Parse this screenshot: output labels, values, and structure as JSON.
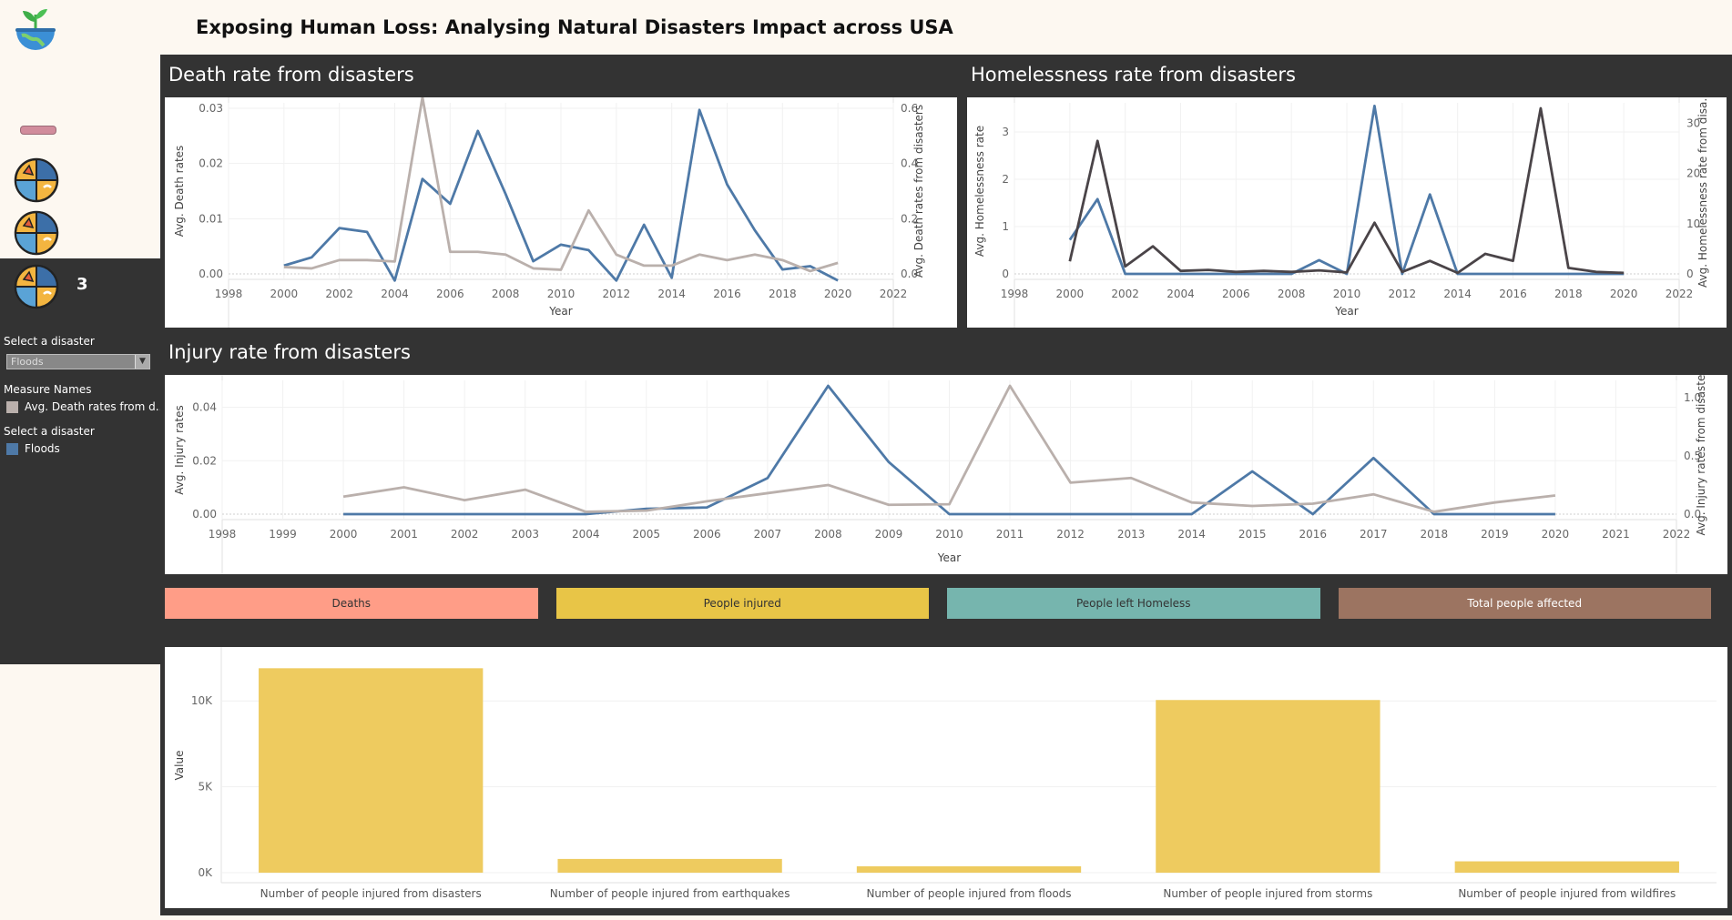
{
  "header": {
    "title": "Exposing Human Loss: Analysing Natural Disasters Impact across USA"
  },
  "icons": {
    "logo": "plant-globe-icon",
    "nav": [
      "disaster-icon",
      "disaster-icon",
      "disaster-icon"
    ]
  },
  "sidebar": {
    "nav_count": "3",
    "filter1_label": "Select a disaster",
    "filter1_value": "Floods",
    "legend1_title": "Measure Names",
    "legend1_item": "Avg. Death rates from d..",
    "legend1_color": "#bab0ac",
    "legend2_title": "Select a disaster",
    "legend2_item": "Floods",
    "legend2_color": "#4e79a7"
  },
  "panels": {
    "death": {
      "title": "Death rate from disasters"
    },
    "homeless": {
      "title": "Homelessness rate from disasters"
    },
    "injury": {
      "title": "Injury rate from disasters"
    }
  },
  "kpi_buttons": [
    {
      "label": "Deaths",
      "color": "#ff9d87",
      "text_color": "#333333"
    },
    {
      "label": "People injured",
      "color": "#e8c547",
      "text_color": "#333333"
    },
    {
      "label": "People left Homeless",
      "color": "#76b5ae",
      "text_color": "#333333"
    },
    {
      "label": "Total people affected",
      "color": "#9c7461",
      "text_color": "#ffffff"
    }
  ],
  "colors": {
    "flood": "#4e79a7",
    "all": "#bab0ac",
    "all_dark": "#4a4448",
    "bar": "#eecb5f",
    "dash": "#333333"
  },
  "chart_data": [
    {
      "type": "line",
      "title": "Death rate from disasters",
      "xlabel": "Year",
      "ylabel": "Avg. Death rates",
      "y2label": "Avg. Death rates from disasters",
      "xlim": [
        1998,
        2022
      ],
      "xticks": [
        "1998",
        "2000",
        "2002",
        "2004",
        "2006",
        "2008",
        "2010",
        "2012",
        "2014",
        "2016",
        "2018",
        "2020",
        "2022"
      ],
      "ylim": [
        0,
        0.03
      ],
      "yticks": [
        "0.00",
        "0.01",
        "0.02",
        "0.03"
      ],
      "y2lim": [
        0,
        0.6
      ],
      "y2ticks": [
        "0.0",
        "0.2",
        "0.4",
        "0.6"
      ],
      "x": [
        2000,
        2001,
        2002,
        2003,
        2004,
        2005,
        2006,
        2007,
        2008,
        2009,
        2010,
        2011,
        2012,
        2013,
        2014,
        2015,
        2016,
        2017,
        2018,
        2019,
        2020
      ],
      "series": [
        {
          "name": "Floods",
          "axis": "left",
          "values": [
            0.0015,
            0.003,
            0.0083,
            0.0076,
            -0.0012,
            0.0172,
            0.0127,
            0.0259,
            0.0145,
            0.0023,
            0.0053,
            0.0043,
            -0.0012,
            0.0089,
            -0.0007,
            0.0297,
            0.0162,
            0.0079,
            0.0008,
            0.0014,
            -0.0012
          ]
        },
        {
          "name": "Avg. Death rates from disasters",
          "axis": "right",
          "values": [
            0.025,
            0.02,
            0.05,
            0.05,
            0.045,
            0.64,
            0.08,
            0.08,
            0.07,
            0.02,
            0.015,
            0.23,
            0.07,
            0.03,
            0.03,
            0.07,
            0.05,
            0.07,
            0.05,
            0.01,
            0.04
          ]
        }
      ]
    },
    {
      "type": "line",
      "title": "Homelessness rate from disasters",
      "xlabel": "Year",
      "ylabel": "Avg. Homelessness rate",
      "y2label": "Avg. Homelessness rate from disa..",
      "xlim": [
        1998,
        2022
      ],
      "xticks": [
        "1998",
        "2000",
        "2002",
        "2004",
        "2006",
        "2008",
        "2010",
        "2012",
        "2014",
        "2016",
        "2018",
        "2020",
        "2022"
      ],
      "ylim": [
        0,
        3.5
      ],
      "yticks": [
        "0",
        "1",
        "2",
        "3"
      ],
      "y2lim": [
        0,
        33
      ],
      "y2ticks": [
        "0",
        "10",
        "20",
        "30"
      ],
      "x": [
        2000,
        2001,
        2002,
        2003,
        2004,
        2005,
        2006,
        2007,
        2008,
        2009,
        2010,
        2011,
        2012,
        2013,
        2014,
        2015,
        2016,
        2017,
        2018,
        2019,
        2020
      ],
      "series": [
        {
          "name": "Floods",
          "axis": "left",
          "values": [
            0.72,
            1.58,
            0,
            0,
            0,
            0,
            0,
            0,
            0,
            0.29,
            0,
            3.55,
            0,
            1.68,
            0,
            0,
            0,
            0,
            0,
            0,
            0
          ]
        },
        {
          "name": "Avg. Homelessness rate from disasters",
          "axis": "right",
          "values": [
            2.5,
            26.5,
            1.5,
            5.5,
            0.6,
            0.8,
            0.4,
            0.6,
            0.4,
            0.7,
            0.3,
            10.2,
            0.4,
            2.6,
            0.2,
            4,
            2.6,
            33,
            1.2,
            0.4,
            0.2
          ]
        }
      ]
    },
    {
      "type": "line",
      "title": "Injury rate from disasters",
      "xlabel": "Year",
      "ylabel": "Avg. Injury rates",
      "y2label": "Avg. Injury rates from disasters",
      "xlim": [
        1998,
        2022
      ],
      "xticks": [
        "1998",
        "1999",
        "2000",
        "2001",
        "2002",
        "2003",
        "2004",
        "2005",
        "2006",
        "2007",
        "2008",
        "2009",
        "2010",
        "2011",
        "2012",
        "2013",
        "2014",
        "2015",
        "2016",
        "2017",
        "2018",
        "2019",
        "2020",
        "2021",
        "2022"
      ],
      "ylim": [
        0,
        0.048
      ],
      "yticks": [
        "0.00",
        "0.02",
        "0.04"
      ],
      "y2lim": [
        0,
        1.1
      ],
      "y2ticks": [
        "0.0",
        "0.5",
        "1.0"
      ],
      "x": [
        2000,
        2001,
        2002,
        2003,
        2004,
        2005,
        2006,
        2007,
        2008,
        2009,
        2010,
        2011,
        2012,
        2013,
        2014,
        2015,
        2016,
        2017,
        2018,
        2019,
        2020
      ],
      "series": [
        {
          "name": "Floods",
          "axis": "left",
          "values": [
            0,
            0,
            0,
            0,
            0,
            0.002,
            0.0025,
            0.0135,
            0.048,
            0.0195,
            0,
            0,
            0,
            0,
            0,
            0.016,
            0,
            0.021,
            0,
            0,
            0
          ]
        },
        {
          "name": "Avg. Injury rates from disasters",
          "axis": "right",
          "values": [
            0.15,
            0.23,
            0.12,
            0.21,
            0.02,
            0.03,
            0.11,
            0.18,
            0.25,
            0.08,
            0.085,
            1.1,
            0.27,
            0.31,
            0.1,
            0.07,
            0.09,
            0.17,
            0.02,
            0.1,
            0.16
          ]
        }
      ]
    },
    {
      "type": "bar",
      "ylabel": "Value",
      "ylim": [
        0,
        12500
      ],
      "yticks": [
        "0K",
        "5K",
        "10K"
      ],
      "categories": [
        "Number of people injured from disasters",
        "Number of people injured from earthquakes",
        "Number of people injured from floods",
        "Number of people injured from storms",
        "Number of people injured from wildfires"
      ],
      "values": [
        11900,
        800,
        370,
        10050,
        660
      ]
    }
  ]
}
